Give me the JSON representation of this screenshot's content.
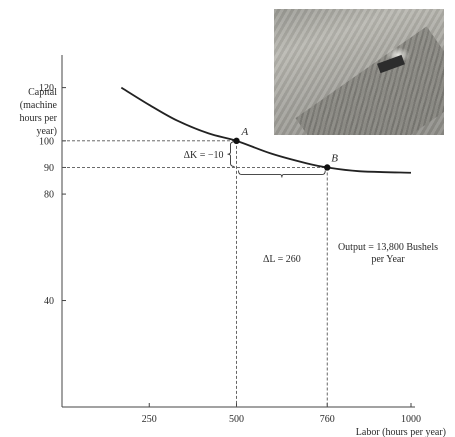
{
  "chart_data": {
    "type": "line",
    "xlabel": "Labor (hours per year)",
    "ylabel": "Capital (machine hours per year)",
    "ylabel_lines": [
      "Capital",
      "(machine",
      "hours per",
      "year)"
    ],
    "xlim": [
      0,
      1000
    ],
    "ylim": [
      0,
      130
    ],
    "x_ticks": [
      250,
      500,
      760,
      1000
    ],
    "y_ticks": [
      40,
      80,
      90,
      100,
      120
    ],
    "grid": false,
    "series": [
      {
        "label_lines": [
          "Output = 13,800 Bushels",
          "per Year"
        ],
        "x": [
          170,
          250,
          330,
          420,
          500,
          600,
          700,
          760,
          850,
          1000
        ],
        "y": [
          120,
          113.5,
          107.6,
          102.8,
          100,
          95.2,
          91.6,
          90,
          88.6,
          88
        ]
      }
    ],
    "points": [
      {
        "label": "A",
        "x": 500,
        "y": 100
      },
      {
        "label": "B",
        "x": 760,
        "y": 90
      }
    ],
    "annotations": {
      "delta_k": "ΔK = −10",
      "delta_l": "ΔL = 260"
    }
  }
}
